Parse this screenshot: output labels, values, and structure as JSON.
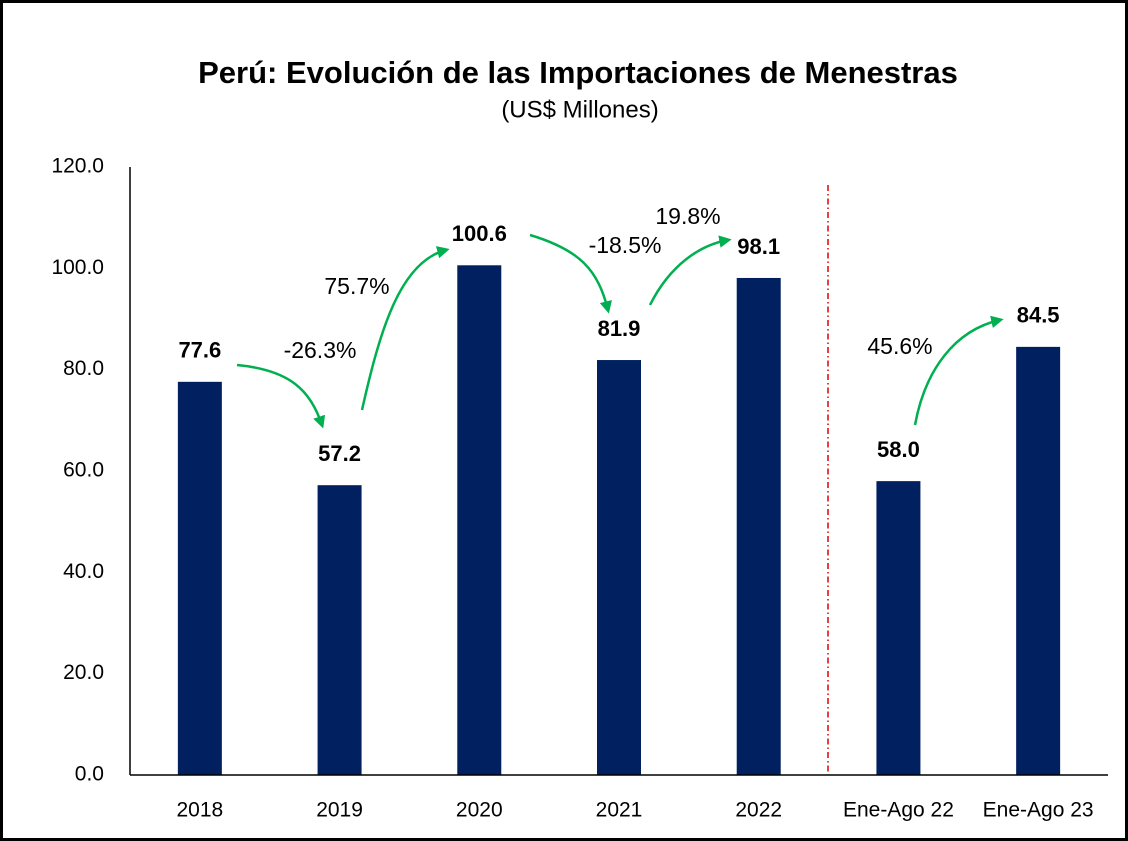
{
  "chart_data": {
    "type": "bar",
    "title": "Perú: Evolución de las Importaciones de Menestras",
    "subtitle": "(US$ Millones)",
    "categories": [
      "2018",
      "2019",
      "2020",
      "2021",
      "2022",
      "Ene-Ago 22",
      "Ene-Ago 23"
    ],
    "values": [
      77.6,
      57.2,
      100.6,
      81.9,
      98.1,
      58.0,
      84.5
    ],
    "value_labels": [
      "77.6",
      "57.2",
      "100.6",
      "81.9",
      "98.1",
      "58.0",
      "84.5"
    ],
    "color": "#002060",
    "ylim": [
      0,
      120
    ],
    "yticks": [
      {
        "value": 0,
        "label": "0.0"
      },
      {
        "value": 20,
        "label": "20.0"
      },
      {
        "value": 40,
        "label": "40.0"
      },
      {
        "value": 60,
        "label": "60.0"
      },
      {
        "value": 80,
        "label": "80.0"
      },
      {
        "value": 100,
        "label": "100.0"
      },
      {
        "value": 120,
        "label": "120.0"
      }
    ],
    "grid": false,
    "annotations": [
      "-26.3%",
      "75.7%",
      "-18.5%",
      "19.8%",
      "45.6%"
    ],
    "arrow_color": "#00b050"
  }
}
